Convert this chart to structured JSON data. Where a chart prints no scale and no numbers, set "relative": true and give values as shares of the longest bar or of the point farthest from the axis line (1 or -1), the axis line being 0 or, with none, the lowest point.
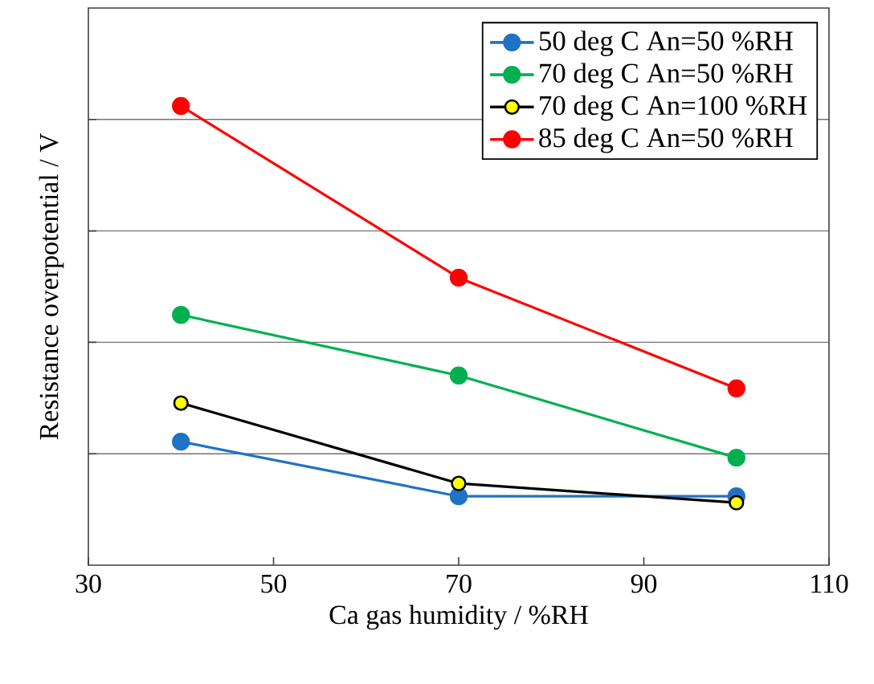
{
  "chart_data": {
    "type": "line",
    "relative": true,
    "xlabel": "Ca gas humidity / %RH",
    "ylabel": "Resistance overpotential / V",
    "x": [
      40,
      70,
      100
    ],
    "xlim": [
      30,
      110
    ],
    "xticks": [
      30,
      50,
      70,
      90,
      110
    ],
    "grid": "y",
    "legend": "top right",
    "marker": "circle",
    "line_style": "solid",
    "series": [
      {
        "name": "50 deg C An=50 %RH",
        "color": "#1f72c4",
        "values": [
          0.269,
          0.15,
          0.15
        ]
      },
      {
        "name": "70 deg C An=50 %RH",
        "color": "#00b050",
        "values": [
          0.545,
          0.413,
          0.234
        ]
      },
      {
        "name": "70 deg C An=100 %RH",
        "color": "#000000",
        "colors": [
          "#ffff00",
          "#ffff00",
          "#ffff00"
        ],
        "values": [
          0.353,
          0.178,
          0.136
        ]
      },
      {
        "name": "85 deg C An=50 %RH",
        "color": "#ff0000",
        "values": [
          1.0,
          0.626,
          0.385
        ]
      }
    ]
  }
}
